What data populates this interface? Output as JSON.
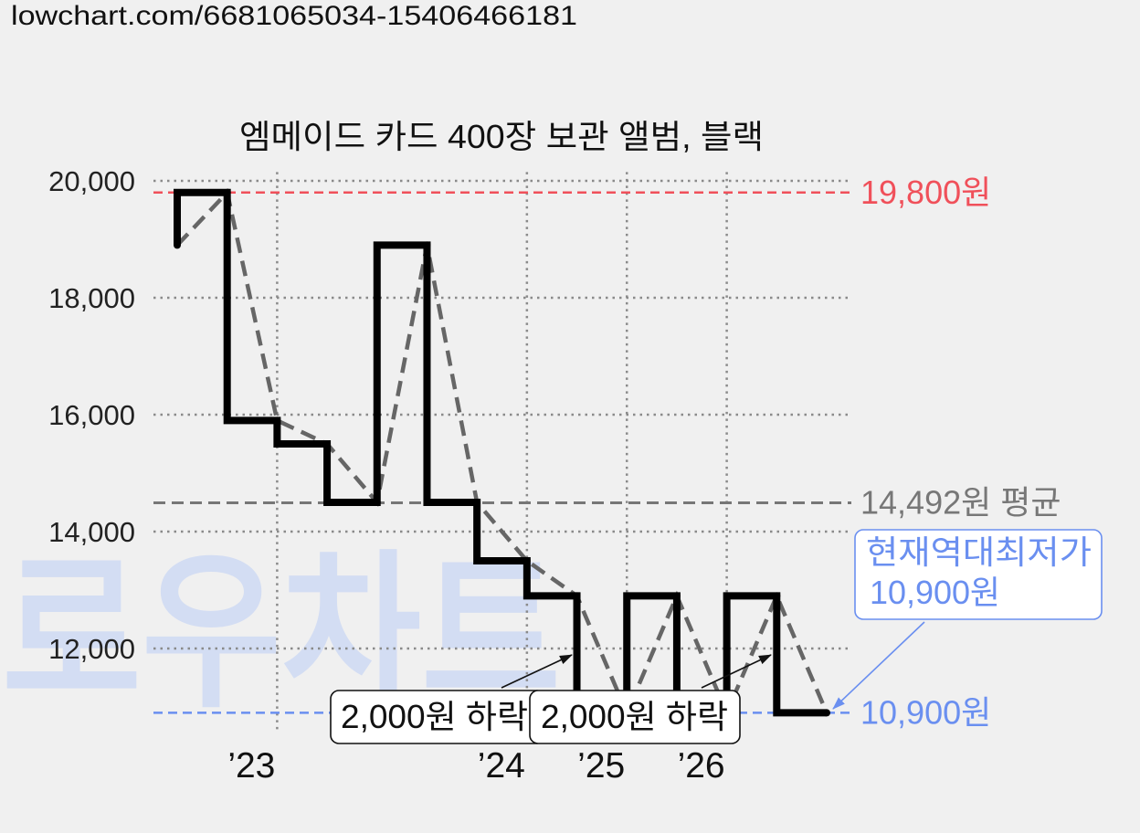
{
  "page": {
    "url": "lowchart.com/6681065034-15406466181",
    "background": "#f0f0f0",
    "watermark": {
      "text": "로우차트",
      "color": "#cfdaf4"
    }
  },
  "chart_data": {
    "type": "line",
    "title": "엠메이드 카드 400장 보관 앨범, 블랙",
    "ylim": [
      10550,
      20150
    ],
    "grid": true,
    "yticks": [
      {
        "value": 20000,
        "label": "20,000"
      },
      {
        "value": 18000,
        "label": "18,000"
      },
      {
        "value": 16000,
        "label": "16,000"
      },
      {
        "value": 14000,
        "label": "14,000"
      },
      {
        "value": 12000,
        "label": "12,000"
      }
    ],
    "xticks": [
      {
        "index": 2,
        "label": "’23"
      },
      {
        "index": 7,
        "label": "’24"
      },
      {
        "index": 9,
        "label": "’25"
      },
      {
        "index": 11,
        "label": "’26"
      }
    ],
    "values": [
      18900,
      19800,
      15900,
      15500,
      14500,
      18900,
      14500,
      13500,
      12900,
      10900,
      12900,
      10900,
      12900,
      10900
    ],
    "step_line_color": "#000000",
    "connector_line_color": "#666666",
    "reference_lines": [
      {
        "value": 19800,
        "label": "19,800원",
        "color": "#f0505a"
      },
      {
        "value": 14492,
        "label": "14,492원 평균",
        "color": "#777777"
      },
      {
        "value": 10900,
        "label": "10,900원",
        "color": "#6a8ff0"
      }
    ],
    "annotations": {
      "lowest": {
        "lines": [
          "현재역대최저가",
          "10,900원"
        ],
        "color": "#6a8ff0"
      },
      "drops": [
        {
          "text": "2,000원 하락"
        },
        {
          "text": "2,000원 하락"
        }
      ]
    }
  }
}
